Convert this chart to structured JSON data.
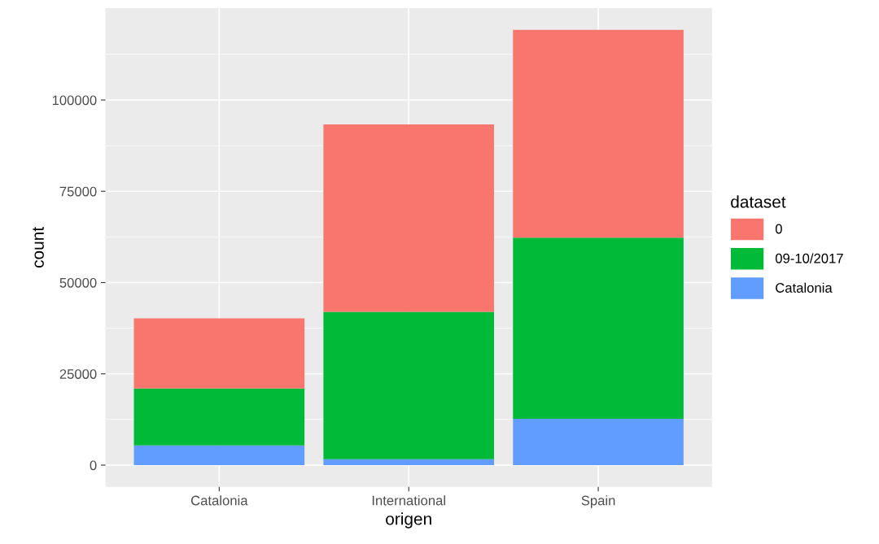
{
  "chart_data": {
    "type": "bar",
    "stacked": true,
    "xlabel": "origen",
    "ylabel": "count",
    "legend_title": "dataset",
    "legend": "right",
    "grid": true,
    "categories": [
      "Catalonia",
      "International",
      "Spain"
    ],
    "series": [
      {
        "name": "Catalonia",
        "color": "#619cff",
        "values": [
          5400,
          1600,
          12700
        ]
      },
      {
        "name": "09-10/2017",
        "color": "#00ba38",
        "values": [
          15600,
          40400,
          49600
        ]
      },
      {
        "name": "0",
        "color": "#f8766d",
        "values": [
          19200,
          51300,
          56900
        ]
      }
    ],
    "ylim": [
      -5960,
      125160
    ],
    "yticks": [
      0,
      25000,
      50000,
      75000,
      100000
    ]
  }
}
